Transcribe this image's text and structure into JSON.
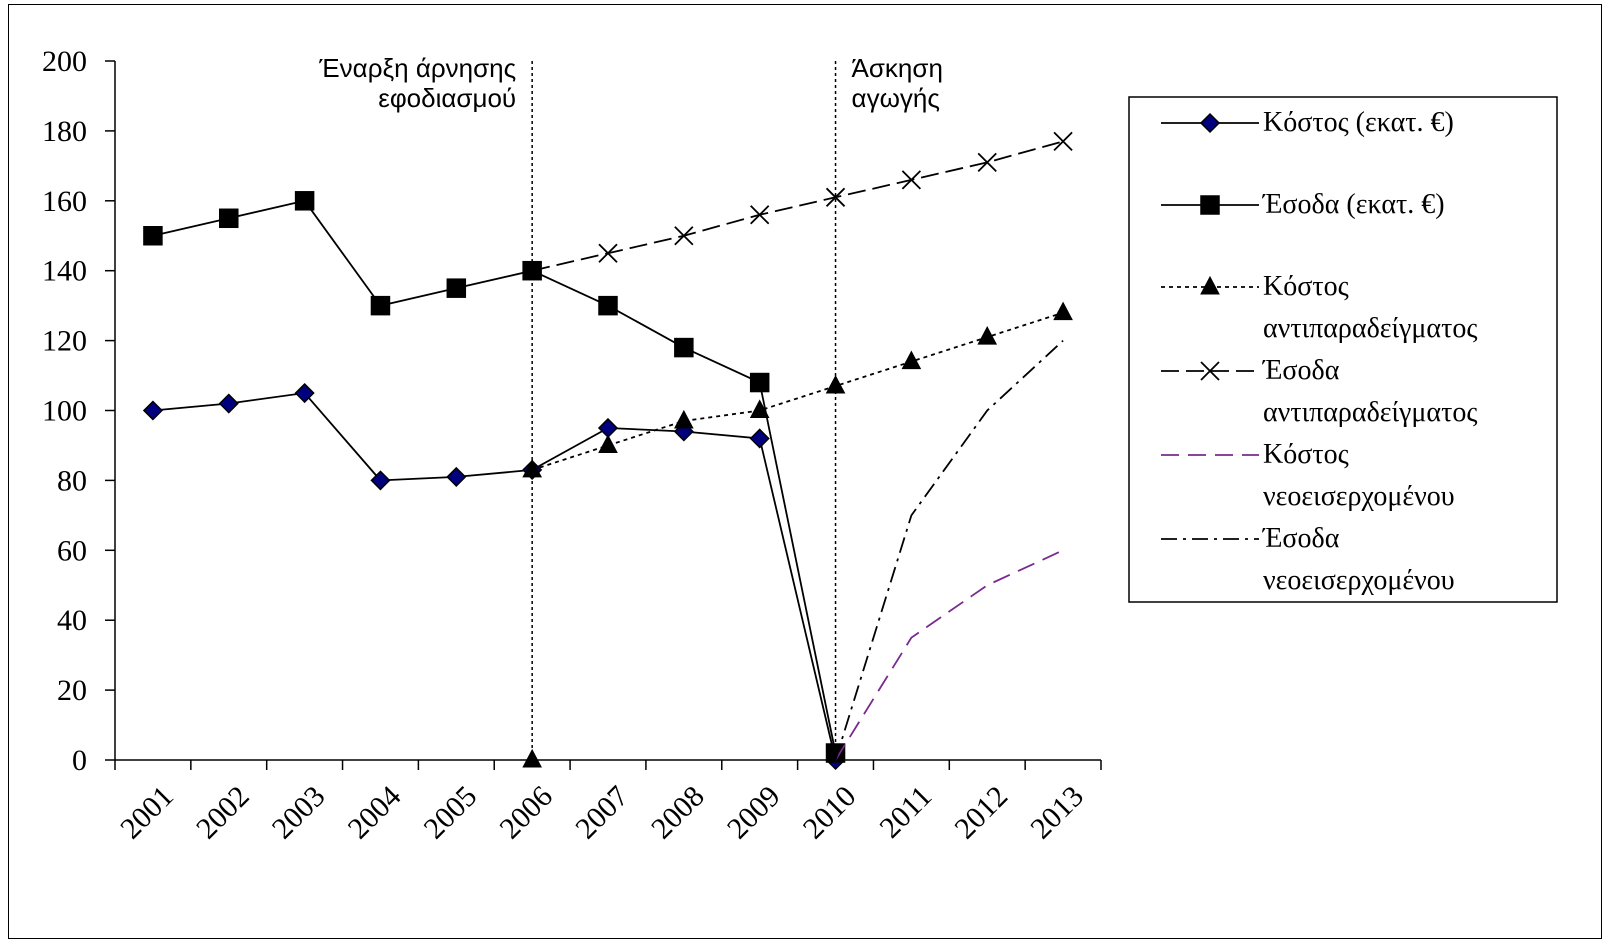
{
  "chart_data": {
    "type": "line",
    "categories": [
      "2001",
      "2002",
      "2003",
      "2004",
      "2005",
      "2006",
      "2007",
      "2008",
      "2009",
      "2010",
      "2011",
      "2012",
      "2013"
    ],
    "ylim": [
      0,
      200
    ],
    "yticks": [
      0,
      20,
      40,
      60,
      80,
      100,
      120,
      140,
      160,
      180,
      200
    ],
    "grid": false,
    "legend_position": "right",
    "annotations": [
      {
        "lines": [
          "Έναρξη άρνησης",
          "εφοδιασμού"
        ],
        "x": "2006",
        "align": "right"
      },
      {
        "lines": [
          "Άσκηση",
          "αγωγής"
        ],
        "x": "2010",
        "align": "left"
      }
    ],
    "series": [
      {
        "name": "Κόστος (εκατ. €)",
        "legend_lines": [
          "Κόστος (εκατ. €)"
        ],
        "color": "#000000",
        "marker": "diamond",
        "marker_fill": "#00007f",
        "dash": "",
        "points": [
          [
            "2001",
            100
          ],
          [
            "2002",
            102
          ],
          [
            "2003",
            105
          ],
          [
            "2004",
            80
          ],
          [
            "2005",
            81
          ],
          [
            "2006",
            83
          ],
          [
            "2007",
            95
          ],
          [
            "2008",
            94
          ],
          [
            "2009",
            92
          ],
          [
            "2010",
            0
          ]
        ]
      },
      {
        "name": "Έσοδα (εκατ. €)",
        "legend_lines": [
          "Έσοδα (εκατ. €)"
        ],
        "color": "#000000",
        "marker": "square",
        "marker_fill": "#000000",
        "dash": "",
        "points": [
          [
            "2001",
            150
          ],
          [
            "2002",
            155
          ],
          [
            "2003",
            160
          ],
          [
            "2004",
            130
          ],
          [
            "2005",
            135
          ],
          [
            "2006",
            140
          ],
          [
            "2007",
            130
          ],
          [
            "2008",
            118
          ],
          [
            "2009",
            108
          ],
          [
            "2010",
            2
          ]
        ]
      },
      {
        "name": "Κόστος αντιπαραδείγματος",
        "legend_lines": [
          "Κόστος",
          "αντιπαραδείγματος"
        ],
        "color": "#000000",
        "marker": "triangle",
        "marker_fill": "#000000",
        "dash": "4,4",
        "points": [
          [
            "2006",
            83
          ],
          [
            "2007",
            90
          ],
          [
            "2008",
            97
          ],
          [
            "2009",
            100
          ],
          [
            "2010",
            107
          ],
          [
            "2011",
            114
          ],
          [
            "2012",
            121
          ],
          [
            "2013",
            128
          ]
        ]
      },
      {
        "name": "Έσοδα αντιπαραδείγματος",
        "legend_lines": [
          "Έσοδα",
          "αντιπαραδείγματος"
        ],
        "color": "#000000",
        "marker": "x",
        "marker_fill": "none",
        "dash": "18,7",
        "points": [
          [
            "2006",
            140
          ],
          [
            "2007",
            145
          ],
          [
            "2008",
            150
          ],
          [
            "2009",
            156
          ],
          [
            "2010",
            161
          ],
          [
            "2011",
            166
          ],
          [
            "2012",
            171
          ],
          [
            "2013",
            177
          ]
        ]
      },
      {
        "name": "Κόστος νεοεισερχομένου",
        "legend_lines": [
          "Κόστος",
          "νεοεισερχομένου"
        ],
        "color": "#7a2a8f",
        "marker": "none",
        "marker_fill": "none",
        "dash": "18,9",
        "points": [
          [
            "2010",
            0
          ],
          [
            "2011",
            35
          ],
          [
            "2012",
            50
          ],
          [
            "2013",
            60
          ]
        ]
      },
      {
        "name": "Έσοδα νεοεισερχομένου",
        "legend_lines": [
          "Έσοδα",
          "νεοεισερχομένου"
        ],
        "color": "#000000",
        "marker": "none",
        "marker_fill": "none",
        "dash": "16,6,3,6",
        "points": [
          [
            "2010",
            0
          ],
          [
            "2011",
            70
          ],
          [
            "2012",
            100
          ],
          [
            "2013",
            120
          ]
        ]
      }
    ],
    "extra_points": [
      {
        "x": "2006",
        "y": 0,
        "marker": "triangle"
      }
    ]
  }
}
